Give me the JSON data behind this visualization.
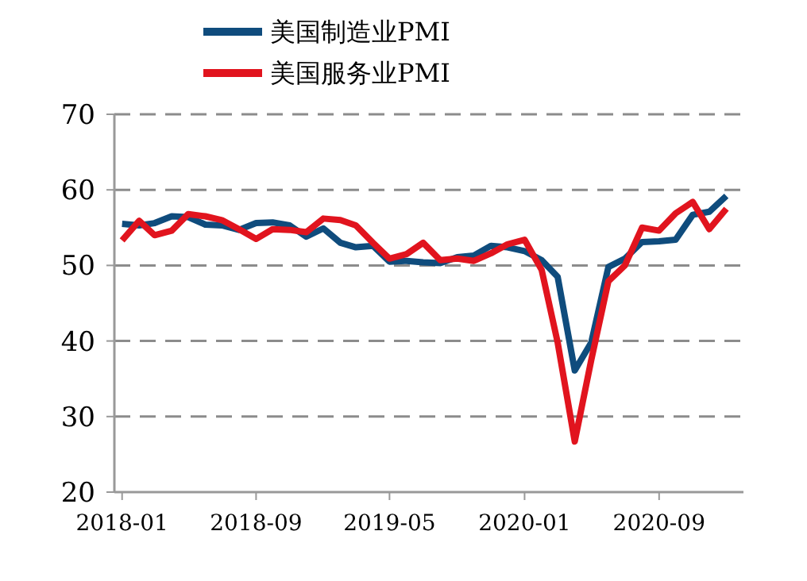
{
  "chart_data": {
    "type": "line",
    "x": [
      "2018-01",
      "2018-02",
      "2018-03",
      "2018-04",
      "2018-05",
      "2018-06",
      "2018-07",
      "2018-08",
      "2018-09",
      "2018-10",
      "2018-11",
      "2018-12",
      "2019-01",
      "2019-02",
      "2019-03",
      "2019-04",
      "2019-05",
      "2019-06",
      "2019-07",
      "2019-08",
      "2019-09",
      "2019-10",
      "2019-11",
      "2019-12",
      "2020-01",
      "2020-02",
      "2020-03",
      "2020-04",
      "2020-05",
      "2020-06",
      "2020-07",
      "2020-08",
      "2020-09",
      "2020-10",
      "2020-11",
      "2020-12",
      "2021-01"
    ],
    "series": [
      {
        "name": "美国制造业PMI",
        "color": "#0f4c7d",
        "values": [
          55.5,
          55.3,
          55.6,
          56.5,
          56.4,
          55.4,
          55.3,
          54.7,
          55.6,
          55.7,
          55.3,
          53.8,
          54.9,
          53.0,
          52.4,
          52.6,
          50.5,
          50.6,
          50.4,
          50.3,
          51.1,
          51.3,
          52.6,
          52.4,
          51.9,
          50.7,
          48.5,
          36.1,
          39.8,
          49.8,
          50.9,
          53.1,
          53.2,
          53.4,
          56.7,
          57.1,
          59.2
        ]
      },
      {
        "name": "美国服务业PMI",
        "color": "#e1141e",
        "values": [
          53.3,
          55.9,
          54.0,
          54.6,
          56.8,
          56.5,
          56.0,
          54.8,
          53.5,
          54.8,
          54.7,
          54.4,
          56.2,
          56.0,
          55.3,
          53.0,
          50.9,
          51.5,
          53.0,
          50.7,
          50.9,
          50.6,
          51.6,
          52.8,
          53.4,
          49.4,
          39.8,
          26.7,
          37.5,
          47.9,
          50.0,
          55.0,
          54.6,
          56.9,
          58.4,
          54.8,
          57.5
        ]
      }
    ],
    "xlim": [
      "2017-12-18",
      "2021-02-01"
    ],
    "xticks": [
      {
        "value": "2018-01",
        "label": "2018-01"
      },
      {
        "value": "2018-09",
        "label": "2018-09"
      },
      {
        "value": "2019-05",
        "label": "2019-05"
      },
      {
        "value": "2020-01",
        "label": "2020-01"
      },
      {
        "value": "2020-09",
        "label": "2020-09"
      }
    ],
    "ylim": [
      20,
      70
    ],
    "yticks": [
      20,
      30,
      40,
      50,
      60,
      70
    ],
    "grid": "y",
    "legend": "top",
    "line_style": "solid",
    "marker": "none"
  }
}
